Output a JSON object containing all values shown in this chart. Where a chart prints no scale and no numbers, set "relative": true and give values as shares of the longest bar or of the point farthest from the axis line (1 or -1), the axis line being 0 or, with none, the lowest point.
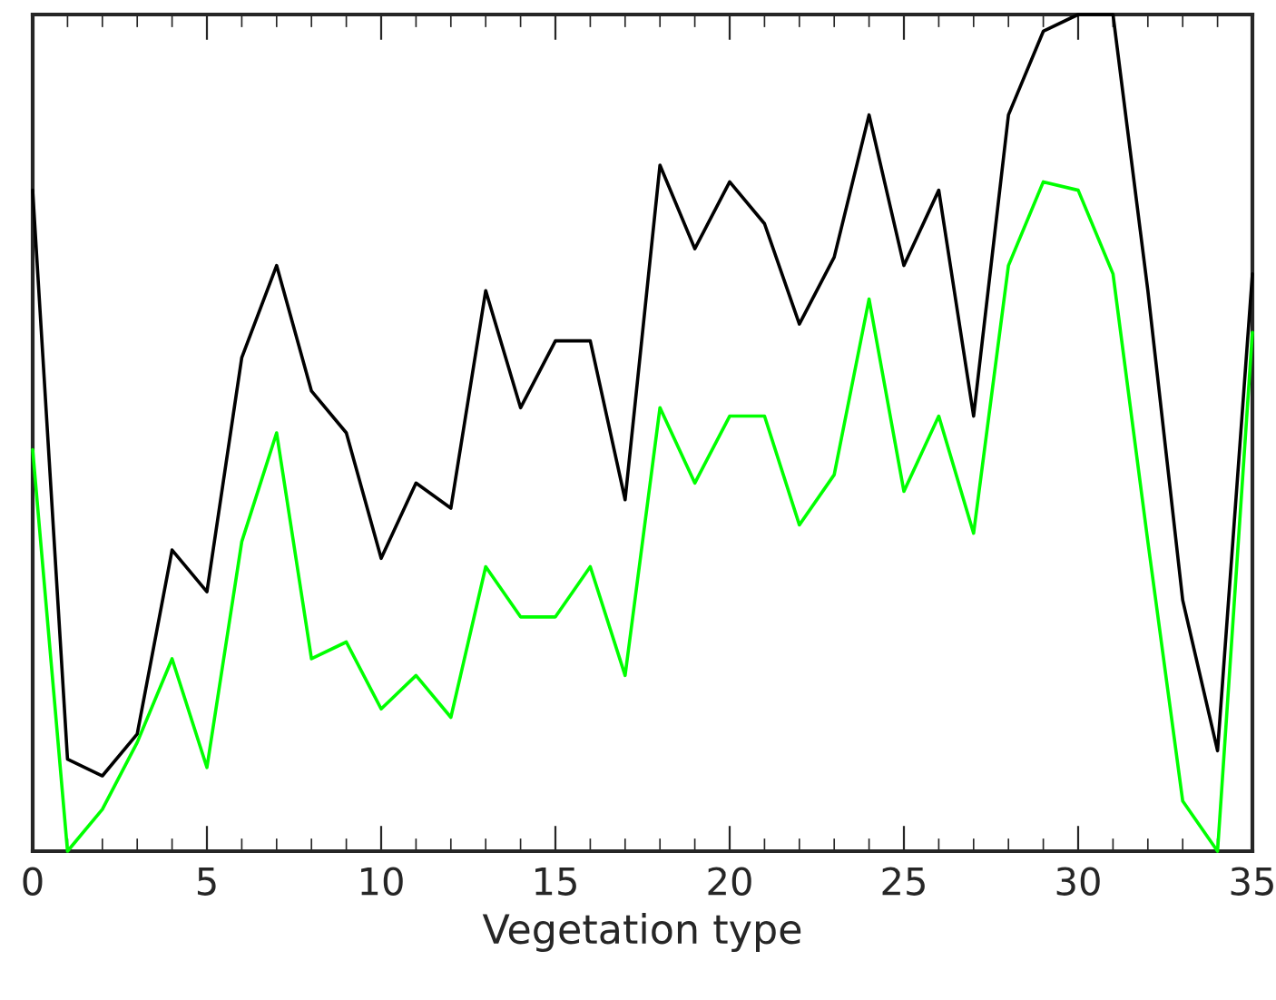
{
  "chart_data": {
    "type": "line",
    "xlabel": "Vegetation type",
    "relative": true,
    "x": [
      0,
      1,
      2,
      3,
      4,
      5,
      6,
      7,
      8,
      9,
      10,
      11,
      12,
      13,
      14,
      15,
      16,
      17,
      18,
      19,
      20,
      21,
      22,
      23,
      24,
      25,
      26,
      27,
      28,
      29,
      30,
      31,
      32,
      33,
      34,
      35
    ],
    "xlim": [
      0,
      35
    ],
    "xticks": [
      0,
      5,
      10,
      15,
      20,
      25,
      30,
      35
    ],
    "grid": false,
    "legend": false,
    "tick_labels": "x",
    "series": [
      {
        "color": "#000000",
        "values": [
          0.79,
          0.11,
          0.09,
          0.14,
          0.36,
          0.31,
          0.59,
          0.7,
          0.55,
          0.5,
          0.35,
          0.44,
          0.41,
          0.67,
          0.53,
          0.61,
          0.61,
          0.42,
          0.82,
          0.72,
          0.8,
          0.75,
          0.63,
          0.71,
          0.88,
          0.7,
          0.79,
          0.52,
          0.88,
          0.98,
          1.0,
          1.0,
          0.67,
          0.3,
          0.12,
          0.69
        ]
      },
      {
        "color": "#00ff00",
        "values": [
          0.48,
          0,
          0.05,
          0.13,
          0.23,
          0.1,
          0.37,
          0.5,
          0.23,
          0.25,
          0.17,
          0.21,
          0.16,
          0.34,
          0.28,
          0.28,
          0.34,
          0.21,
          0.53,
          0.44,
          0.52,
          0.52,
          0.39,
          0.45,
          0.66,
          0.43,
          0.52,
          0.38,
          0.7,
          0.8,
          0.79,
          0.69,
          0.37,
          0.06,
          0,
          0.62
        ]
      }
    ]
  }
}
